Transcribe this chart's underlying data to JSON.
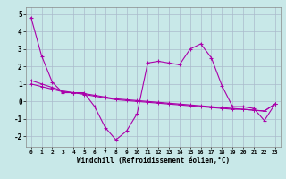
{
  "xlabel": "Windchill (Refroidissement éolien,°C)",
  "bg_color": "#c8e8e8",
  "line_color": "#aa00aa",
  "grid_color": "#aabbcc",
  "xlim": [
    -0.5,
    23.5
  ],
  "ylim": [
    -2.6,
    5.4
  ],
  "yticks": [
    -2,
    -1,
    0,
    1,
    2,
    3,
    4,
    5
  ],
  "xticks": [
    0,
    1,
    2,
    3,
    4,
    5,
    6,
    7,
    8,
    9,
    10,
    11,
    12,
    13,
    14,
    15,
    16,
    17,
    18,
    19,
    20,
    21,
    22,
    23
  ],
  "series1": [
    4.8,
    2.6,
    1.1,
    0.5,
    0.5,
    0.5,
    -0.3,
    -1.5,
    -2.2,
    -1.7,
    -0.7,
    2.2,
    2.3,
    2.2,
    2.1,
    3.0,
    3.3,
    2.5,
    0.9,
    -0.3,
    -0.3,
    -0.4,
    -1.1,
    -0.15
  ],
  "series2": [
    1.0,
    0.85,
    0.7,
    0.55,
    0.5,
    0.45,
    0.35,
    0.25,
    0.15,
    0.1,
    0.05,
    0.0,
    -0.05,
    -0.1,
    -0.15,
    -0.2,
    -0.25,
    -0.3,
    -0.35,
    -0.4,
    -0.45,
    -0.5,
    -0.55,
    -0.15
  ],
  "series3": [
    1.2,
    1.0,
    0.8,
    0.6,
    0.5,
    0.4,
    0.3,
    0.2,
    0.1,
    0.05,
    0.0,
    -0.05,
    -0.1,
    -0.15,
    -0.2,
    -0.25,
    -0.3,
    -0.35,
    -0.4,
    -0.45,
    -0.45,
    -0.5,
    -0.55,
    -0.15
  ]
}
